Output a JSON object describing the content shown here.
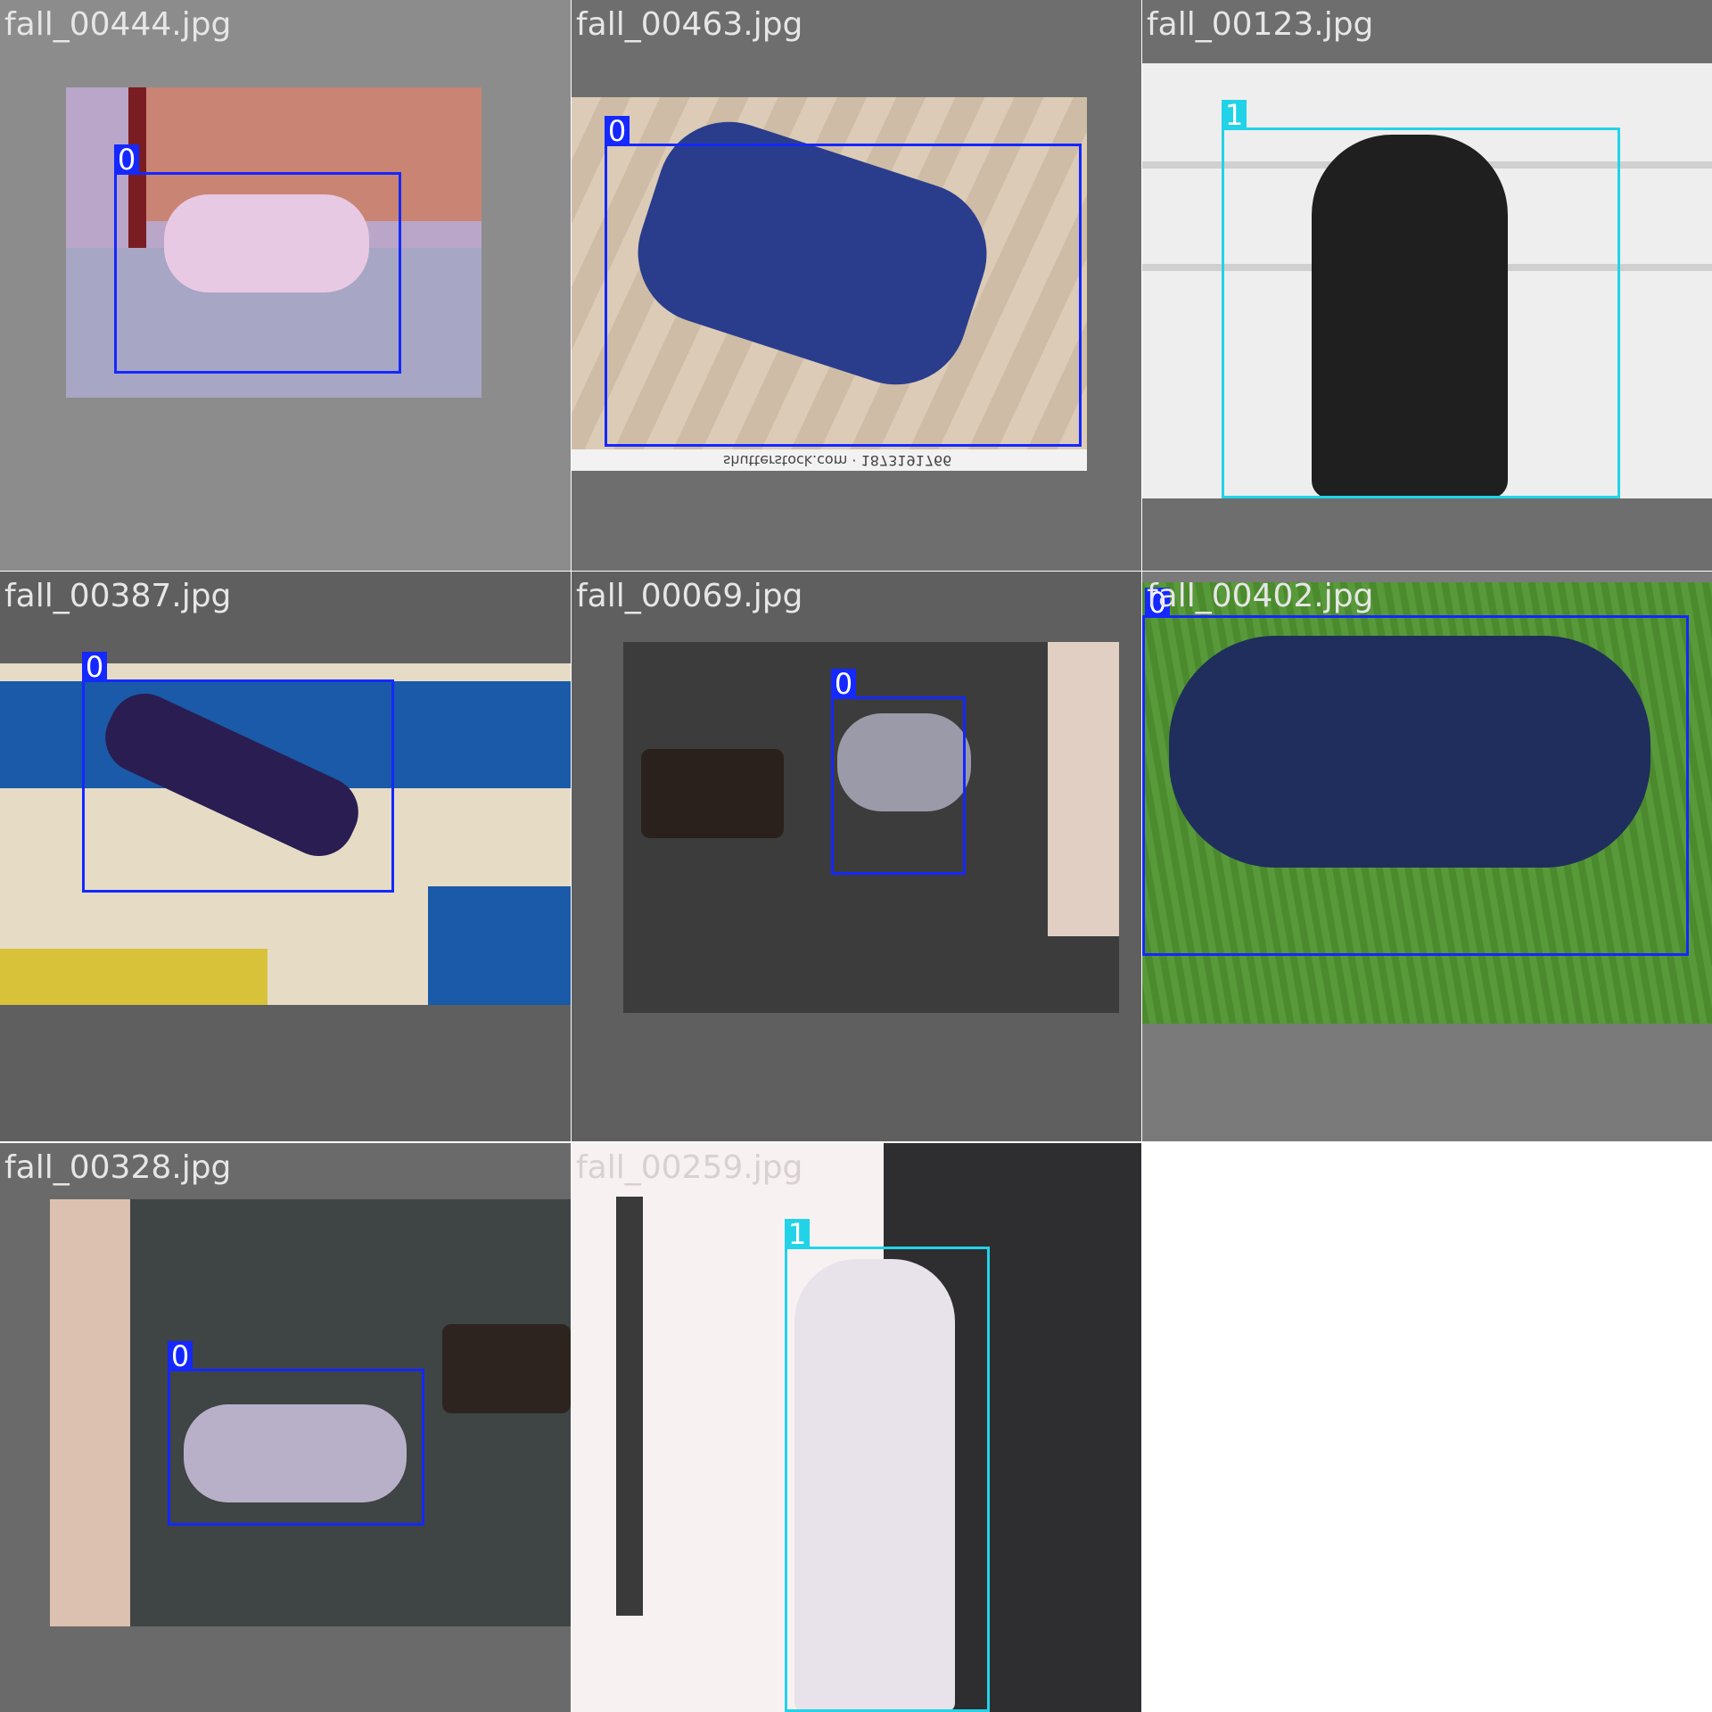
{
  "grid": {
    "tiles": [
      {
        "filename": "fall_00444.jpg",
        "label": "0",
        "class_color": "#1428ff"
      },
      {
        "filename": "fall_00463.jpg",
        "label": "0",
        "class_color": "#1428ff",
        "watermark": "shutterstock.com · 1873191766"
      },
      {
        "filename": "fall_00123.jpg",
        "label": "1",
        "class_color": "#22d3e8"
      },
      {
        "filename": "fall_00387.jpg",
        "label": "0",
        "class_color": "#1428ff"
      },
      {
        "filename": "fall_00069.jpg",
        "label": "0",
        "class_color": "#1428ff"
      },
      {
        "filename": "fall_00402.jpg",
        "label": "0",
        "class_color": "#1428ff"
      },
      {
        "filename": "fall_00328.jpg",
        "label": "0",
        "class_color": "#1428ff"
      },
      {
        "filename": "fall_00259.jpg",
        "label": "1",
        "class_color": "#22d3e8"
      }
    ]
  }
}
